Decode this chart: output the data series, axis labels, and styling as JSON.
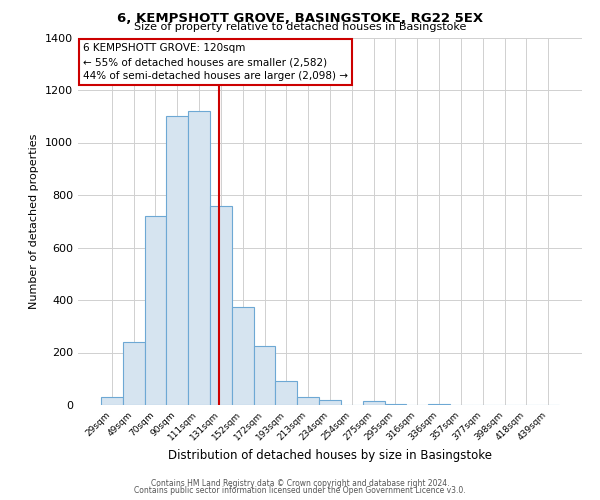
{
  "title": "6, KEMPSHOTT GROVE, BASINGSTOKE, RG22 5EX",
  "subtitle": "Size of property relative to detached houses in Basingstoke",
  "xlabel": "Distribution of detached houses by size in Basingstoke",
  "ylabel": "Number of detached properties",
  "bar_color": "#d6e4f0",
  "bar_edge_color": "#6da8d4",
  "bin_labels": [
    "29sqm",
    "49sqm",
    "70sqm",
    "90sqm",
    "111sqm",
    "131sqm",
    "152sqm",
    "172sqm",
    "193sqm",
    "213sqm",
    "234sqm",
    "254sqm",
    "275sqm",
    "295sqm",
    "316sqm",
    "336sqm",
    "357sqm",
    "377sqm",
    "398sqm",
    "418sqm",
    "439sqm"
  ],
  "bin_values": [
    30,
    240,
    720,
    1100,
    1120,
    760,
    375,
    225,
    90,
    30,
    20,
    0,
    15,
    5,
    0,
    2,
    0,
    0,
    0,
    0,
    0
  ],
  "ylim": [
    0,
    1400
  ],
  "yticks": [
    0,
    200,
    400,
    600,
    800,
    1000,
    1200,
    1400
  ],
  "annotation_text": "6 KEMPSHOTT GROVE: 120sqm\n← 55% of detached houses are smaller (2,582)\n44% of semi-detached houses are larger (2,098) →",
  "annotation_box_color": "#ffffff",
  "annotation_border_color": "#cc0000",
  "vline_color": "#cc0000",
  "footer_line1": "Contains HM Land Registry data © Crown copyright and database right 2024.",
  "footer_line2": "Contains public sector information licensed under the Open Government Licence v3.0.",
  "background_color": "#ffffff",
  "grid_color": "#d0d0d0",
  "vline_x_index": 4.9
}
